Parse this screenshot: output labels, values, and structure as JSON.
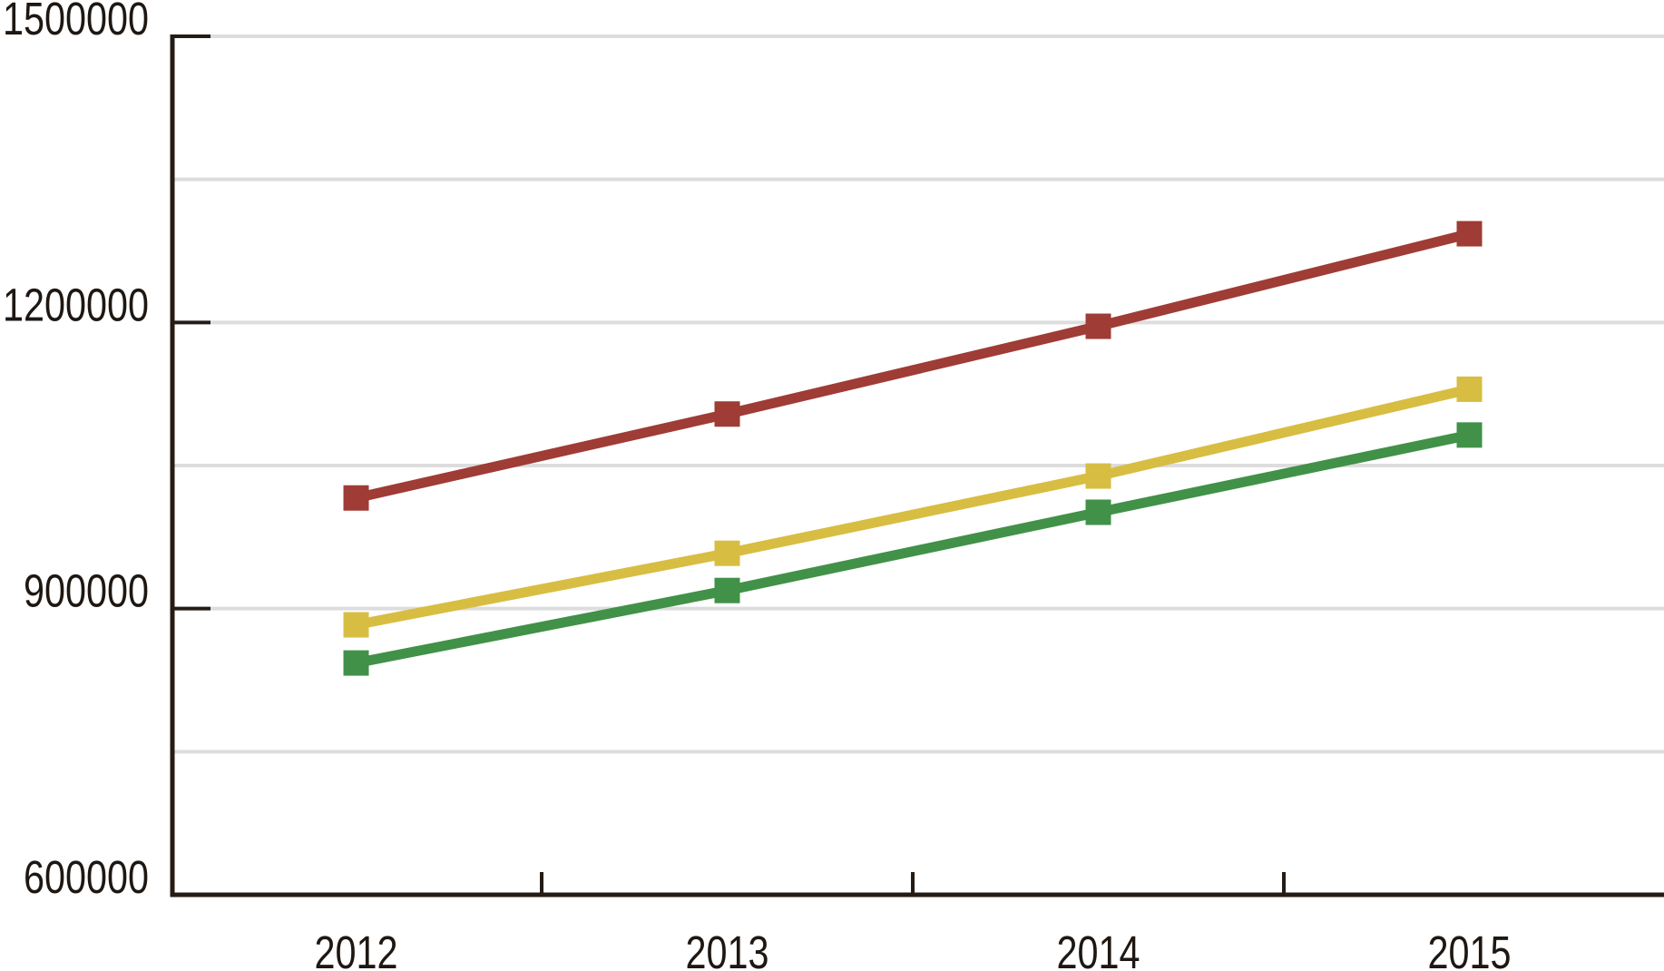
{
  "chart_data": {
    "type": "line",
    "title": "",
    "categories": [
      "2012",
      "2013",
      "2014",
      "2015"
    ],
    "series": [
      {
        "name": "red",
        "color": "#9E3C35",
        "values": [
          1016000,
          1104000,
          1196000,
          1293000
        ]
      },
      {
        "name": "yellow",
        "color": "#D8BD43",
        "values": [
          883000,
          958000,
          1039000,
          1130000
        ]
      },
      {
        "name": "green",
        "color": "#419148",
        "values": [
          843000,
          919000,
          1001000,
          1082000
        ]
      }
    ],
    "marker": "square",
    "y_axis": {
      "min": 600000,
      "max": 1500000,
      "tick_interval": 300000,
      "tick_labels": [
        "1500000",
        "1200000",
        "900000",
        "600000"
      ],
      "gridline_interval": 150000
    },
    "x_axis": {
      "labels": [
        "2012",
        "2013",
        "2014",
        "2015"
      ]
    },
    "legend": "none",
    "grid": true,
    "colors": {
      "background": "#FFFFFF",
      "axis": "#241C15",
      "gridline": "#DDDDDD",
      "label_text": "#1E1712"
    }
  }
}
